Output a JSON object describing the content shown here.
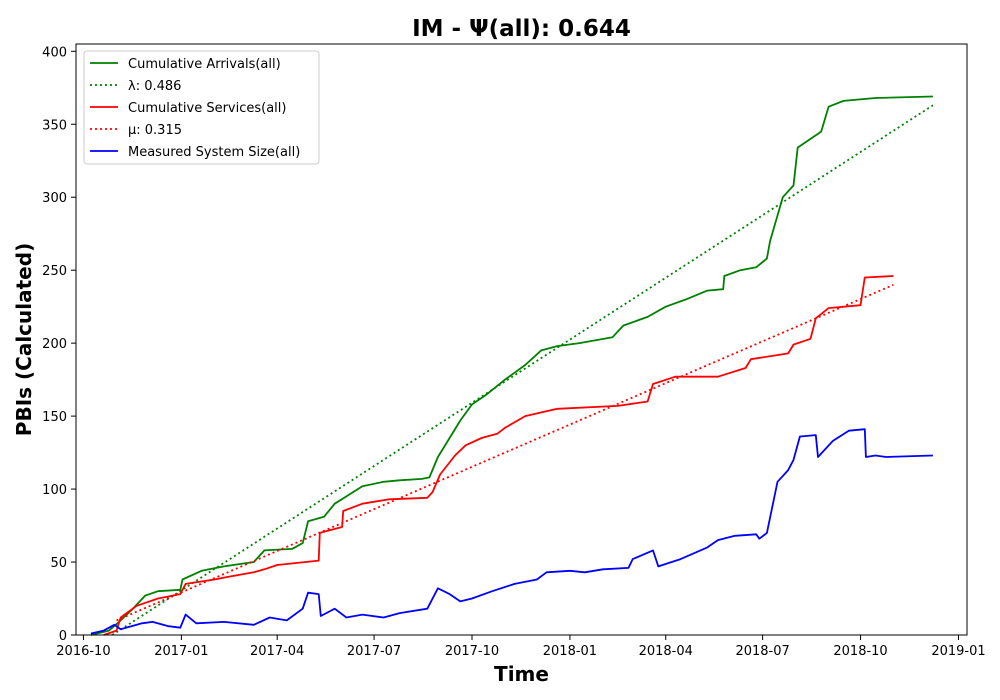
{
  "chart_data": {
    "type": "line",
    "title": "IM -  Ψ(all): 0.644",
    "xlabel": "Time",
    "ylabel": "PBIs (Calculated)",
    "xlim": [
      "2016-09-24",
      "2019-01-09"
    ],
    "ylim": [
      0,
      405
    ],
    "x_ticks": [
      "2016-10",
      "2017-01",
      "2017-04",
      "2017-07",
      "2017-10",
      "2018-01",
      "2018-04",
      "2018-07",
      "2018-10",
      "2019-01"
    ],
    "y_ticks": [
      0,
      50,
      100,
      150,
      200,
      250,
      300,
      350,
      400
    ],
    "grid": false,
    "legend_position": "top-left",
    "series": [
      {
        "name": "Cumulative Arrivals(all)",
        "color": "#008000",
        "style": "solid",
        "points": [
          [
            "2016-10-08",
            0
          ],
          [
            "2016-10-25",
            3
          ],
          [
            "2016-11-05",
            10
          ],
          [
            "2016-11-15",
            17
          ],
          [
            "2016-11-28",
            27
          ],
          [
            "2016-12-10",
            30
          ],
          [
            "2016-12-31",
            31
          ],
          [
            "2017-01-02",
            38
          ],
          [
            "2017-01-20",
            44
          ],
          [
            "2017-02-10",
            47
          ],
          [
            "2017-03-10",
            50
          ],
          [
            "2017-03-20",
            58
          ],
          [
            "2017-04-15",
            59
          ],
          [
            "2017-04-25",
            63
          ],
          [
            "2017-04-30",
            78
          ],
          [
            "2017-05-15",
            81
          ],
          [
            "2017-05-25",
            90
          ],
          [
            "2017-06-05",
            95
          ],
          [
            "2017-06-20",
            102
          ],
          [
            "2017-07-10",
            105
          ],
          [
            "2017-07-25",
            106
          ],
          [
            "2017-08-15",
            107
          ],
          [
            "2017-08-22",
            108
          ],
          [
            "2017-08-30",
            122
          ],
          [
            "2017-09-10",
            135
          ],
          [
            "2017-09-20",
            147
          ],
          [
            "2017-10-01",
            158
          ],
          [
            "2017-10-15",
            165
          ],
          [
            "2017-11-01",
            175
          ],
          [
            "2017-11-20",
            185
          ],
          [
            "2017-12-05",
            195
          ],
          [
            "2017-12-20",
            198
          ],
          [
            "2018-01-10",
            200
          ],
          [
            "2018-02-10",
            204
          ],
          [
            "2018-02-20",
            212
          ],
          [
            "2018-03-15",
            218
          ],
          [
            "2018-04-01",
            225
          ],
          [
            "2018-04-20",
            230
          ],
          [
            "2018-05-10",
            236
          ],
          [
            "2018-05-25",
            237
          ],
          [
            "2018-05-26",
            246
          ],
          [
            "2018-06-10",
            250
          ],
          [
            "2018-06-25",
            252
          ],
          [
            "2018-07-05",
            258
          ],
          [
            "2018-07-08",
            270
          ],
          [
            "2018-07-20",
            300
          ],
          [
            "2018-07-30",
            308
          ],
          [
            "2018-08-03",
            334
          ],
          [
            "2018-08-15",
            340
          ],
          [
            "2018-08-25",
            345
          ],
          [
            "2018-09-01",
            362
          ],
          [
            "2018-09-15",
            366
          ],
          [
            "2018-10-15",
            368
          ],
          [
            "2018-12-08",
            369
          ]
        ]
      },
      {
        "name": "λ: 0.486",
        "color": "#008000",
        "style": "dotted",
        "points": [
          [
            "2016-10-28",
            0
          ],
          [
            "2018-12-08",
            363
          ]
        ]
      },
      {
        "name": "Cumulative Services(all)",
        "color": "#ff0000",
        "style": "solid",
        "points": [
          [
            "2016-10-20",
            0
          ],
          [
            "2016-11-01",
            3
          ],
          [
            "2016-11-05",
            12
          ],
          [
            "2016-11-20",
            20
          ],
          [
            "2016-12-10",
            25
          ],
          [
            "2016-12-31",
            28
          ],
          [
            "2017-01-05",
            35
          ],
          [
            "2017-02-01",
            38
          ],
          [
            "2017-02-15",
            40
          ],
          [
            "2017-03-10",
            43
          ],
          [
            "2017-03-20",
            45
          ],
          [
            "2017-04-01",
            48
          ],
          [
            "2017-05-10",
            51
          ],
          [
            "2017-05-11",
            70
          ],
          [
            "2017-06-01",
            74
          ],
          [
            "2017-06-02",
            85
          ],
          [
            "2017-06-20",
            90
          ],
          [
            "2017-07-15",
            93
          ],
          [
            "2017-08-20",
            94
          ],
          [
            "2017-08-25",
            98
          ],
          [
            "2017-09-01",
            110
          ],
          [
            "2017-09-15",
            123
          ],
          [
            "2017-09-25",
            130
          ],
          [
            "2017-10-10",
            135
          ],
          [
            "2017-10-25",
            138
          ],
          [
            "2017-11-01",
            142
          ],
          [
            "2017-11-20",
            150
          ],
          [
            "2017-12-20",
            155
          ],
          [
            "2018-02-15",
            157
          ],
          [
            "2018-03-15",
            160
          ],
          [
            "2018-03-20",
            172
          ],
          [
            "2018-04-10",
            177
          ],
          [
            "2018-05-20",
            177
          ],
          [
            "2018-06-15",
            183
          ],
          [
            "2018-06-20",
            189
          ],
          [
            "2018-07-25",
            193
          ],
          [
            "2018-07-30",
            199
          ],
          [
            "2018-08-15",
            203
          ],
          [
            "2018-08-20",
            217
          ],
          [
            "2018-09-01",
            224
          ],
          [
            "2018-10-01",
            226
          ],
          [
            "2018-10-05",
            245
          ],
          [
            "2018-11-01",
            246
          ]
        ]
      },
      {
        "name": "μ: 0.315",
        "color": "#ff0000",
        "style": "dotted",
        "points": [
          [
            "2016-11-01",
            10
          ],
          [
            "2018-11-01",
            240
          ]
        ]
      },
      {
        "name": "Measured System Size(all)",
        "color": "#0000ff",
        "style": "solid",
        "points": [
          [
            "2016-10-08",
            1
          ],
          [
            "2016-10-20",
            3
          ],
          [
            "2016-10-30",
            7
          ],
          [
            "2016-11-05",
            4
          ],
          [
            "2016-11-15",
            6
          ],
          [
            "2016-11-25",
            8
          ],
          [
            "2016-12-05",
            9
          ],
          [
            "2016-12-20",
            6
          ],
          [
            "2016-12-31",
            5
          ],
          [
            "2017-01-05",
            14
          ],
          [
            "2017-01-15",
            8
          ],
          [
            "2017-02-10",
            9
          ],
          [
            "2017-03-10",
            7
          ],
          [
            "2017-03-25",
            12
          ],
          [
            "2017-04-10",
            10
          ],
          [
            "2017-04-25",
            18
          ],
          [
            "2017-04-30",
            29
          ],
          [
            "2017-05-10",
            28
          ],
          [
            "2017-05-12",
            13
          ],
          [
            "2017-05-25",
            18
          ],
          [
            "2017-06-05",
            12
          ],
          [
            "2017-06-20",
            14
          ],
          [
            "2017-07-10",
            12
          ],
          [
            "2017-07-25",
            15
          ],
          [
            "2017-08-20",
            18
          ],
          [
            "2017-08-30",
            32
          ],
          [
            "2017-09-10",
            28
          ],
          [
            "2017-09-20",
            23
          ],
          [
            "2017-10-01",
            25
          ],
          [
            "2017-10-20",
            30
          ],
          [
            "2017-11-10",
            35
          ],
          [
            "2017-12-01",
            38
          ],
          [
            "2017-12-10",
            43
          ],
          [
            "2018-01-01",
            44
          ],
          [
            "2018-01-15",
            43
          ],
          [
            "2018-02-01",
            45
          ],
          [
            "2018-02-25",
            46
          ],
          [
            "2018-03-01",
            52
          ],
          [
            "2018-03-20",
            58
          ],
          [
            "2018-03-25",
            47
          ],
          [
            "2018-04-15",
            52
          ],
          [
            "2018-05-10",
            60
          ],
          [
            "2018-05-20",
            65
          ],
          [
            "2018-06-05",
            68
          ],
          [
            "2018-06-25",
            69
          ],
          [
            "2018-06-28",
            66
          ],
          [
            "2018-07-05",
            70
          ],
          [
            "2018-07-15",
            105
          ],
          [
            "2018-07-25",
            113
          ],
          [
            "2018-07-30",
            120
          ],
          [
            "2018-08-05",
            136
          ],
          [
            "2018-08-20",
            137
          ],
          [
            "2018-08-22",
            122
          ],
          [
            "2018-09-05",
            133
          ],
          [
            "2018-09-20",
            140
          ],
          [
            "2018-10-05",
            141
          ],
          [
            "2018-10-06",
            122
          ],
          [
            "2018-10-15",
            123
          ],
          [
            "2018-10-25",
            122
          ],
          [
            "2018-12-08",
            123
          ]
        ]
      }
    ]
  }
}
